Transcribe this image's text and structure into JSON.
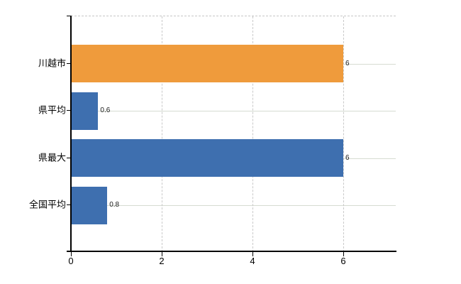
{
  "chart_data": {
    "type": "bar",
    "orientation": "horizontal",
    "title": "",
    "xlabel": "",
    "ylabel": "",
    "categories": [
      "川越市",
      "県平均",
      "県最大",
      "全国平均"
    ],
    "values": [
      6,
      0.6,
      6,
      0.8
    ],
    "data_labels": [
      "6",
      "0.6",
      "6",
      "0.8"
    ],
    "bar_colors": [
      "#ef9b3c",
      "#3e6faf",
      "#3e6faf",
      "#3e6faf"
    ],
    "x_ticks": [
      0,
      2,
      4,
      6
    ],
    "x_tick_labels": [
      "0",
      "2",
      "4",
      "6"
    ],
    "xlim": [
      0,
      7.16
    ],
    "grid": true,
    "legend": null
  },
  "colors": {
    "highlight_bar": "#ef9b3c",
    "default_bar": "#3e6faf",
    "axis": "#000000",
    "gridline_horizontal": "#d6dcd2",
    "gridline_vertical": "#c9c9c9",
    "label_text": "#1a1a1a",
    "background": "#ffffff"
  }
}
